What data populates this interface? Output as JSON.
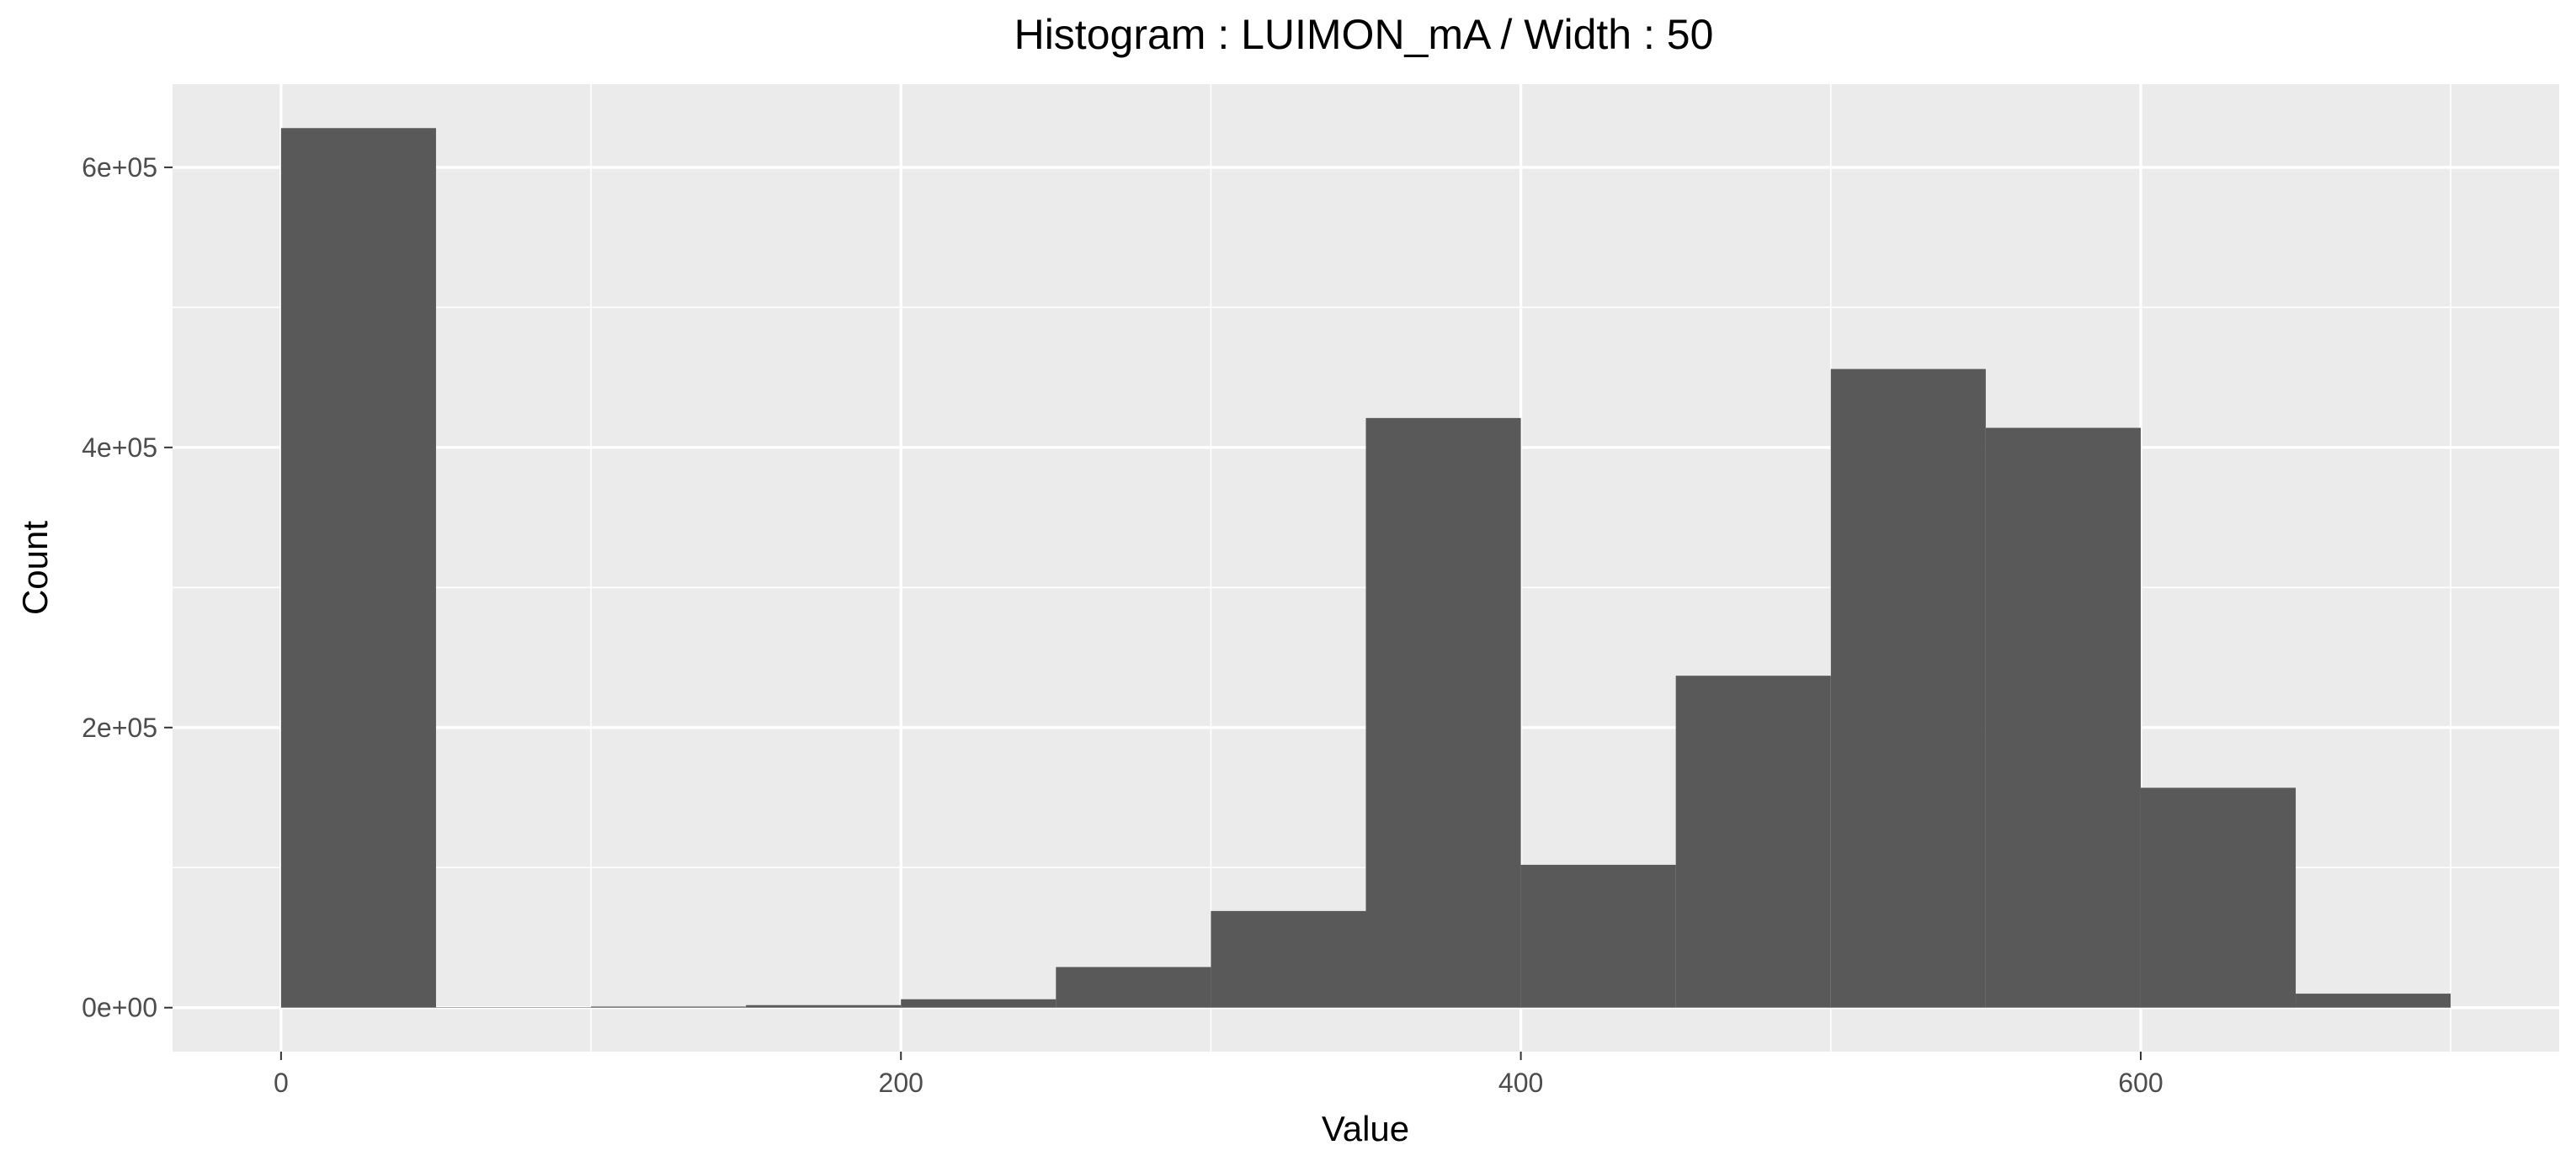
{
  "chart_data": {
    "type": "bar",
    "title": "Histogram : LUIMON_mA / Width : 50",
    "xlabel": "Value",
    "ylabel": "Count",
    "bin_width": 50,
    "bins": [
      {
        "start": 0,
        "end": 50,
        "count": 628000
      },
      {
        "start": 50,
        "end": 100,
        "count": 300
      },
      {
        "start": 100,
        "end": 150,
        "count": 800
      },
      {
        "start": 150,
        "end": 200,
        "count": 1800
      },
      {
        "start": 200,
        "end": 250,
        "count": 6000
      },
      {
        "start": 250,
        "end": 300,
        "count": 29000
      },
      {
        "start": 300,
        "end": 350,
        "count": 69000
      },
      {
        "start": 350,
        "end": 400,
        "count": 421000
      },
      {
        "start": 400,
        "end": 450,
        "count": 102000
      },
      {
        "start": 450,
        "end": 500,
        "count": 237000
      },
      {
        "start": 500,
        "end": 550,
        "count": 456000
      },
      {
        "start": 550,
        "end": 600,
        "count": 414000
      },
      {
        "start": 600,
        "end": 650,
        "count": 157000
      },
      {
        "start": 650,
        "end": 700,
        "count": 10000
      }
    ],
    "xlim": [
      -35,
      735
    ],
    "ylim": [
      -31400,
      659400
    ],
    "x_ticks": [
      {
        "value": 0,
        "label": "0"
      },
      {
        "value": 200,
        "label": "200"
      },
      {
        "value": 400,
        "label": "400"
      },
      {
        "value": 600,
        "label": "600"
      }
    ],
    "x_minor_ticks": [
      100,
      300,
      500,
      700
    ],
    "y_ticks": [
      {
        "value": 0,
        "label": "0e+00"
      },
      {
        "value": 200000,
        "label": "2e+05"
      },
      {
        "value": 400000,
        "label": "4e+05"
      },
      {
        "value": 600000,
        "label": "6e+05"
      }
    ],
    "y_minor_ticks": [
      100000,
      300000,
      500000
    ],
    "grid": true,
    "colors": {
      "panel_background": "#ebebeb",
      "grid_major": "#ffffff",
      "bar_fill": "#595959",
      "tick_label": "#4d4d4d",
      "tick_mark": "#333333"
    }
  }
}
